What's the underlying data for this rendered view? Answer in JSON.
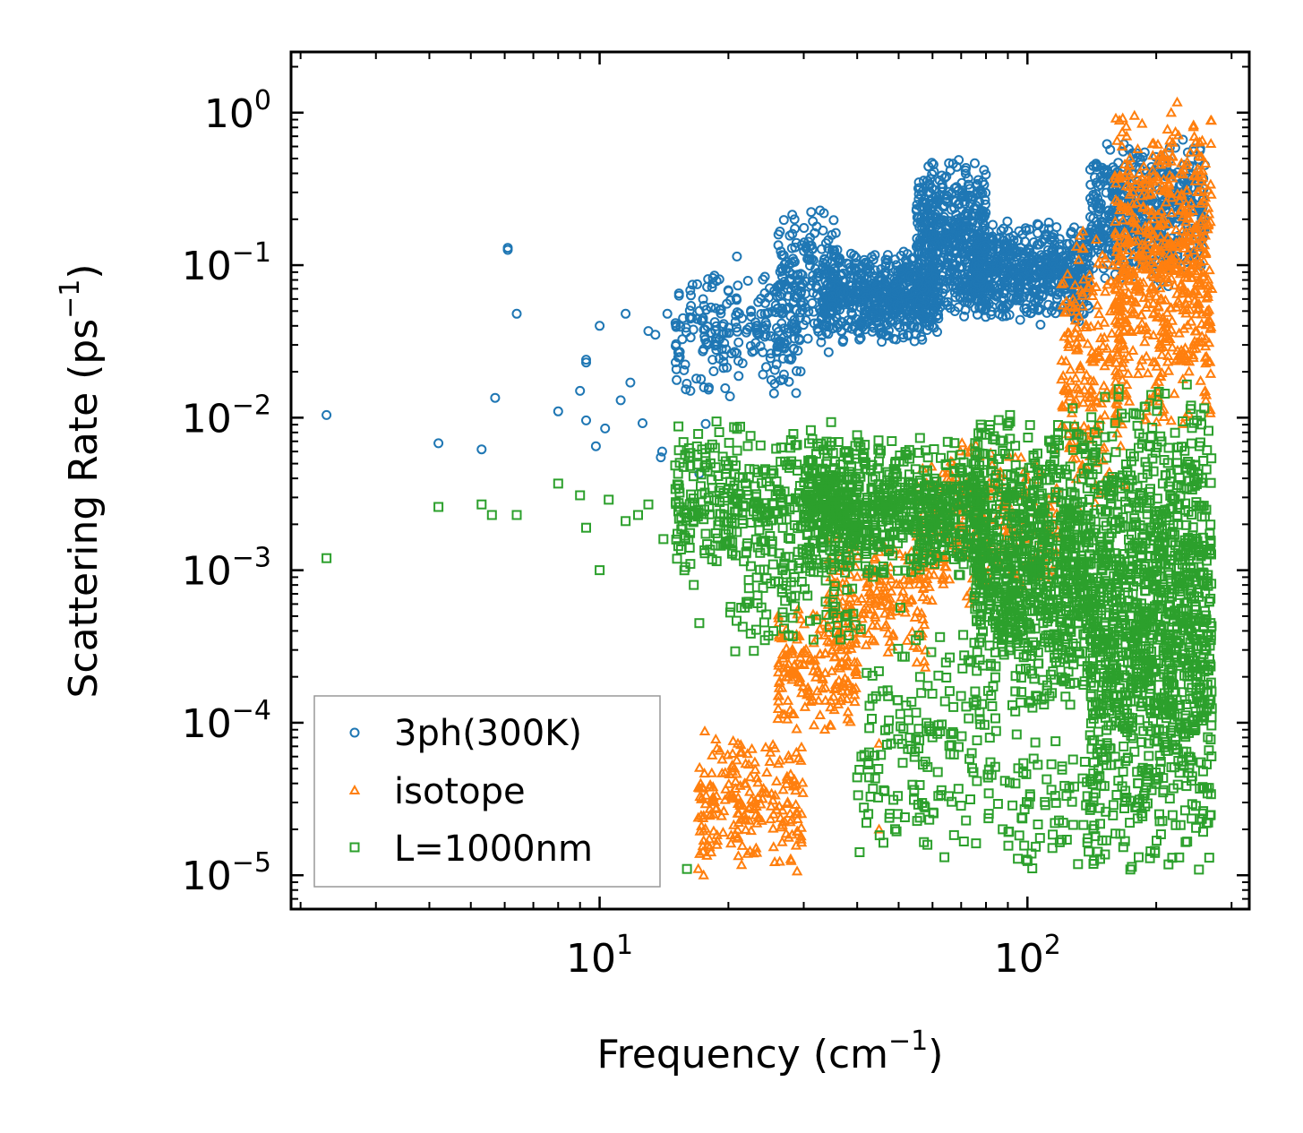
{
  "chart_data": {
    "type": "scatter",
    "title": "",
    "xlabel": "Frequency (cm",
    "xlabel_sup": "−1",
    "xlabel_end": ")",
    "ylabel": "Scattering Rate (ps",
    "ylabel_sup": "−1",
    "ylabel_end": ")",
    "xscale": "log",
    "yscale": "log",
    "xlim": [
      1.9,
      330
    ],
    "ylim": [
      6e-06,
      2.5
    ],
    "x_ticks": [
      {
        "value": 10,
        "base": "10",
        "exp": "1"
      },
      {
        "value": 100,
        "base": "10",
        "exp": "2"
      }
    ],
    "y_ticks": [
      {
        "value": 1,
        "base": "10",
        "exp": "0"
      },
      {
        "value": 0.1,
        "base": "10",
        "exp": "−1"
      },
      {
        "value": 0.01,
        "base": "10",
        "exp": "−2"
      },
      {
        "value": 0.001,
        "base": "10",
        "exp": "−3"
      },
      {
        "value": 0.0001,
        "base": "10",
        "exp": "−4"
      },
      {
        "value": 1e-05,
        "base": "10",
        "exp": "−5"
      }
    ],
    "legend_position": "lower-left",
    "series": [
      {
        "name": "3ph(300K)",
        "marker": "circle",
        "color": "#1f77b4",
        "points": [
          [
            2.3,
            0.0104
          ],
          [
            4.2,
            0.0068
          ],
          [
            5.3,
            0.0062
          ],
          [
            5.7,
            0.0135
          ],
          [
            6.1,
            0.13
          ],
          [
            6.1,
            0.126
          ],
          [
            6.4,
            0.048
          ],
          [
            8.0,
            0.011
          ],
          [
            9.0,
            0.015
          ],
          [
            9.3,
            0.023
          ],
          [
            9.3,
            0.024
          ],
          [
            9.3,
            0.0096
          ],
          [
            9.8,
            0.0065
          ],
          [
            10.0,
            0.04
          ],
          [
            10.3,
            0.0085
          ],
          [
            11.2,
            0.013
          ],
          [
            11.5,
            0.048
          ],
          [
            11.8,
            0.017
          ],
          [
            12.6,
            0.0092
          ],
          [
            13.0,
            0.037
          ],
          [
            13.5,
            0.035
          ],
          [
            13.9,
            0.0055
          ],
          [
            14.0,
            0.006
          ],
          [
            14.4,
            0.048
          ],
          [
            15.4,
            0.027
          ],
          [
            15.4,
            0.025
          ],
          [
            16.3,
            0.015
          ],
          [
            17.1,
            0.0043
          ],
          [
            17.7,
            0.0091
          ]
        ],
        "clusters": [
          {
            "x": [
              15,
              30
            ],
            "y": [
              0.012,
              0.12
            ],
            "n": 240
          },
          {
            "x": [
              26,
              36
            ],
            "y": [
              0.025,
              0.28
            ],
            "n": 160
          },
          {
            "x": [
              33,
              62
            ],
            "y": [
              0.03,
              0.13
            ],
            "n": 620
          },
          {
            "x": [
              55,
              80
            ],
            "y": [
              0.04,
              0.55
            ],
            "n": 520
          },
          {
            "x": [
              75,
              140
            ],
            "y": [
              0.04,
              0.2
            ],
            "n": 620
          },
          {
            "x": [
              140,
              260
            ],
            "y": [
              0.07,
              0.7
            ],
            "n": 520
          }
        ]
      },
      {
        "name": "isotope",
        "marker": "triangle",
        "color": "#ff7f0e",
        "points": [
          [
            17.0,
            1.1e-05
          ],
          [
            17.5,
            1e-05
          ],
          [
            45.0,
            2e-05
          ],
          [
            45.0,
            7.3e-05
          ]
        ],
        "clusters": [
          {
            "x": [
              17,
              30
            ],
            "y": [
              1e-05,
              9e-05
            ],
            "n": 220
          },
          {
            "x": [
              26,
              40
            ],
            "y": [
              8e-05,
              0.0006
            ],
            "n": 180
          },
          {
            "x": [
              34,
              60
            ],
            "y": [
              0.0002,
              0.002
            ],
            "n": 200
          },
          {
            "x": [
              55,
              120
            ],
            "y": [
              0.0005,
              0.008
            ],
            "n": 240
          },
          {
            "x": [
              120,
              170
            ],
            "y": [
              0.002,
              0.25
            ],
            "n": 220
          },
          {
            "x": [
              160,
              270
            ],
            "y": [
              0.008,
              1.3
            ],
            "n": 620
          }
        ]
      },
      {
        "name": "L=1000nm",
        "marker": "square",
        "color": "#2ca02c",
        "points": [
          [
            2.3,
            0.0012
          ],
          [
            4.2,
            0.0026
          ],
          [
            5.3,
            0.0027
          ],
          [
            5.6,
            0.0023
          ],
          [
            6.4,
            0.0023
          ],
          [
            8.0,
            0.0037
          ],
          [
            9.0,
            0.0031
          ],
          [
            9.3,
            0.0019
          ],
          [
            10.0,
            0.001
          ],
          [
            10.5,
            0.0029
          ],
          [
            11.5,
            0.0021
          ],
          [
            12.3,
            0.0023
          ],
          [
            13.0,
            0.0027
          ],
          [
            14.1,
            0.0016
          ],
          [
            16.3,
            0.0011
          ],
          [
            16.6,
            0.0008
          ],
          [
            17.1,
            0.00045
          ],
          [
            16.0,
            1.1e-05
          ]
        ],
        "clusters": [
          {
            "x": [
              15,
              40
            ],
            "y": [
              0.0008,
              0.01
            ],
            "n": 420
          },
          {
            "x": [
              20,
              40
            ],
            "y": [
              0.00025,
              0.0012
            ],
            "n": 70
          },
          {
            "x": [
              30,
              80
            ],
            "y": [
              0.0008,
              0.008
            ],
            "n": 700
          },
          {
            "x": [
              40,
              80
            ],
            "y": [
              1e-05,
              0.0006
            ],
            "n": 160
          },
          {
            "x": [
              75,
              140
            ],
            "y": [
              0.0001,
              0.012
            ],
            "n": 900
          },
          {
            "x": [
              80,
              150
            ],
            "y": [
              1e-05,
              0.0001
            ],
            "n": 90
          },
          {
            "x": [
              140,
              270
            ],
            "y": [
              1e-05,
              0.02
            ],
            "n": 1300
          }
        ]
      }
    ]
  }
}
